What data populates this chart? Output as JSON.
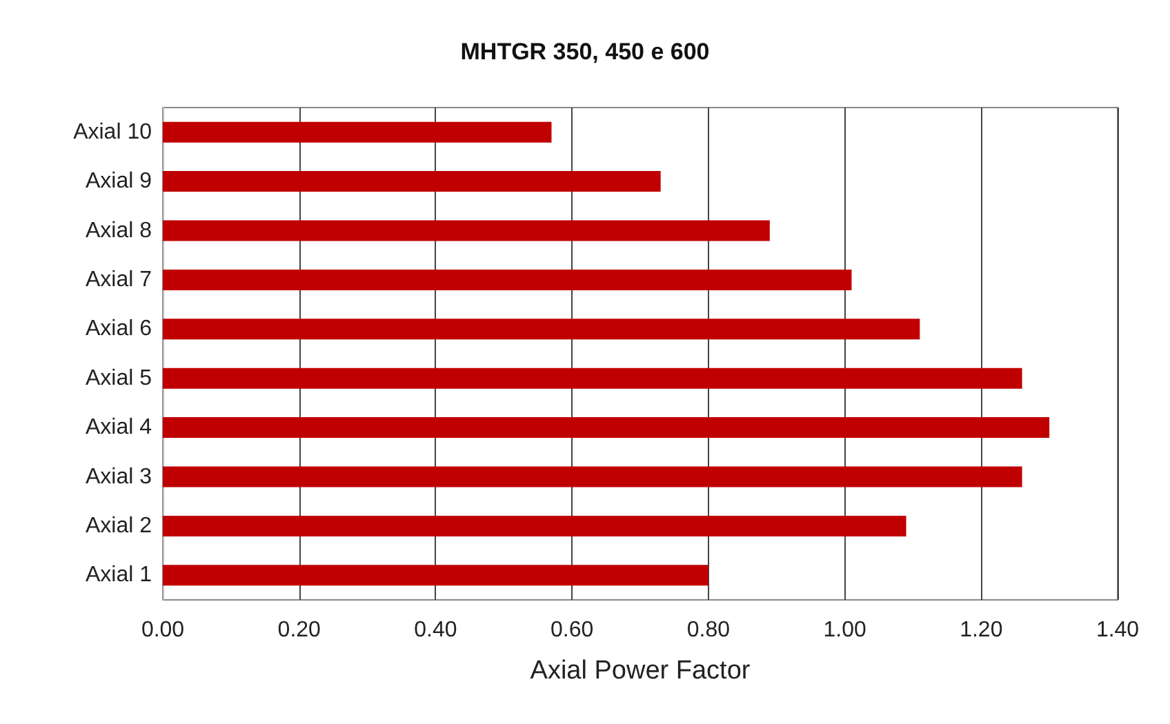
{
  "chart_data": {
    "type": "bar",
    "orientation": "horizontal",
    "title": "MHTGR 350, 450 e 600",
    "xlabel": "Axial Power Factor",
    "categories": [
      "Axial 10",
      "Axial 9",
      "Axial 8",
      "Axial 7",
      "Axial 6",
      "Axial 5",
      "Axial 4",
      "Axial 3",
      "Axial 2",
      "Axial 1"
    ],
    "values": [
      0.57,
      0.73,
      0.89,
      1.01,
      1.11,
      1.26,
      1.3,
      1.26,
      1.09,
      0.8
    ],
    "color": "#c00000",
    "xlim": [
      0,
      1.4
    ],
    "xticks": [
      {
        "value": 0,
        "label": "0.00"
      },
      {
        "value": 0.2,
        "label": "0.20"
      },
      {
        "value": 0.4,
        "label": "0.40"
      },
      {
        "value": 0.6,
        "label": "0.60"
      },
      {
        "value": 0.8,
        "label": "0.80"
      },
      {
        "value": 1.0,
        "label": "1.00"
      },
      {
        "value": 1.2,
        "label": "1.20"
      },
      {
        "value": 1.4,
        "label": "1.40"
      }
    ],
    "grid": "x"
  }
}
